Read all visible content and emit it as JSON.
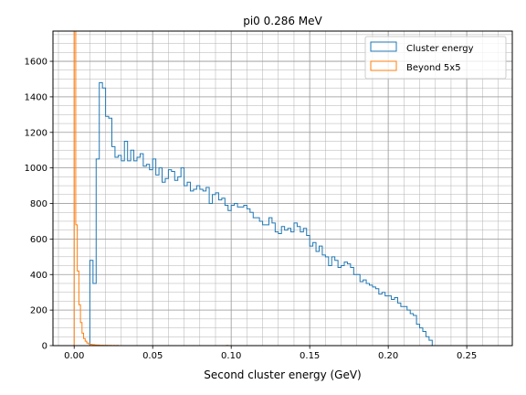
{
  "chart_data": {
    "type": "histogram",
    "title": "pi0 0.286 MeV",
    "xlabel": "Second cluster energy (GeV)",
    "ylabel": "",
    "xlim": [
      -0.0135,
      0.279
    ],
    "ylim": [
      0,
      1770
    ],
    "x_ticks": [
      0.0,
      0.05,
      0.1,
      0.15,
      0.2,
      0.25
    ],
    "x_tick_labels": [
      "0.00",
      "0.05",
      "0.10",
      "0.15",
      "0.20",
      "0.25"
    ],
    "y_ticks": [
      0,
      200,
      400,
      600,
      800,
      1000,
      1200,
      1400,
      1600
    ],
    "y_tick_labels": [
      "0",
      "200",
      "400",
      "600",
      "800",
      "1000",
      "1200",
      "1400",
      "1600"
    ],
    "grid": true,
    "minor_grid": true,
    "legend_position": "upper right",
    "series": [
      {
        "name": "Cluster energy",
        "color": "#1f77b4",
        "bin_start": 0.0,
        "bin_width": 0.002,
        "values": [
          0,
          0,
          0,
          0,
          0,
          480,
          350,
          1050,
          1480,
          1450,
          1290,
          1280,
          1120,
          1060,
          1070,
          1040,
          1150,
          1040,
          1100,
          1040,
          1060,
          1080,
          1010,
          1020,
          990,
          1050,
          960,
          1000,
          920,
          940,
          990,
          980,
          930,
          950,
          1000,
          900,
          920,
          870,
          880,
          900,
          880,
          870,
          890,
          800,
          850,
          860,
          820,
          830,
          790,
          760,
          790,
          800,
          780,
          780,
          790,
          770,
          750,
          720,
          720,
          700,
          680,
          680,
          720,
          690,
          640,
          630,
          670,
          650,
          660,
          640,
          690,
          670,
          640,
          660,
          620,
          560,
          580,
          530,
          560,
          510,
          500,
          450,
          500,
          480,
          440,
          450,
          470,
          460,
          440,
          400,
          400,
          360,
          370,
          350,
          340,
          330,
          320,
          290,
          300,
          280,
          280,
          260,
          270,
          240,
          220,
          220,
          200,
          180,
          170,
          120,
          100,
          80,
          50,
          30,
          0
        ],
        "note": ""
      },
      {
        "name": "Beyond 5x5",
        "color": "#ff7f0e",
        "bin_start": 0.0,
        "bin_width": 0.001,
        "values": [
          1770,
          680,
          420,
          230,
          130,
          70,
          40,
          25,
          15,
          10,
          8,
          6,
          5,
          4,
          3,
          3,
          2,
          2,
          2,
          1,
          2,
          1,
          1,
          1,
          0,
          1,
          0,
          1,
          0,
          0,
          0,
          0,
          0,
          0,
          0,
          0,
          0,
          0,
          0,
          0,
          0,
          0,
          0,
          0,
          0,
          0,
          0,
          0,
          0,
          0,
          0,
          0,
          0,
          0,
          0,
          0,
          0,
          0,
          0,
          0,
          0,
          0,
          0,
          0,
          0,
          0,
          0,
          0,
          0,
          0,
          0,
          0,
          0,
          0,
          0,
          0,
          0,
          0,
          0,
          0,
          0,
          0,
          0,
          0,
          0,
          0,
          0,
          0,
          0,
          0,
          0,
          0,
          0,
          0,
          0,
          0,
          0,
          1,
          0,
          0,
          0
        ]
      }
    ]
  }
}
